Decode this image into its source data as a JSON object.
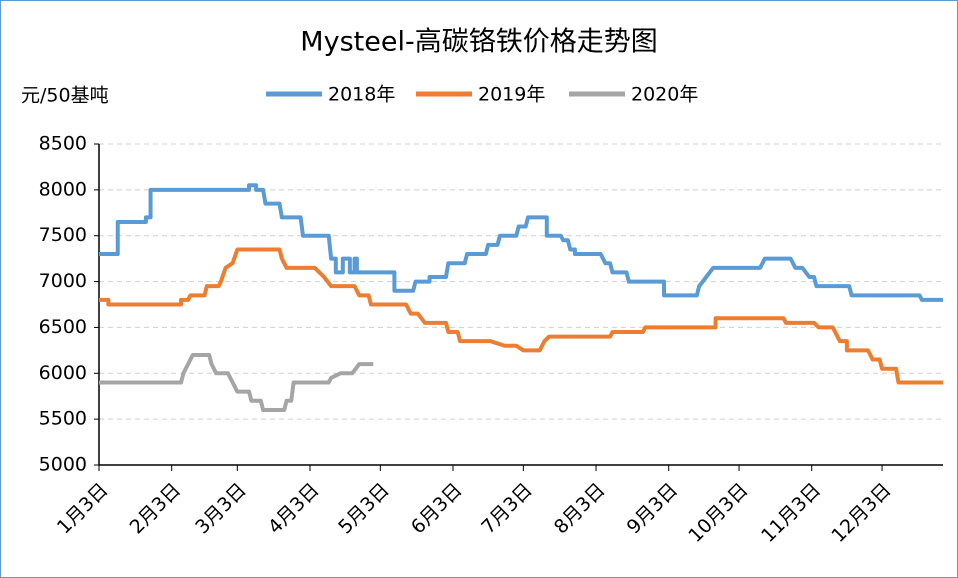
{
  "chart_data": {
    "type": "line",
    "title": "Mysteel-高碳铬铁价格走势图",
    "y_label": "元/50基吨",
    "xlim": [
      0,
      360
    ],
    "ylim": [
      5000,
      8500
    ],
    "yticks": [
      5000,
      5500,
      6000,
      6500,
      7000,
      7500,
      8000,
      8500
    ],
    "grid": true,
    "xticks": [
      {
        "value": 0,
        "label": "1月3日"
      },
      {
        "value": 31,
        "label": "2月3日"
      },
      {
        "value": 59,
        "label": "3月3日"
      },
      {
        "value": 90,
        "label": "4月3日"
      },
      {
        "value": 120,
        "label": "5月3日"
      },
      {
        "value": 151,
        "label": "6月3日"
      },
      {
        "value": 181,
        "label": "7月3日"
      },
      {
        "value": 212,
        "label": "8月3日"
      },
      {
        "value": 243,
        "label": "9月3日"
      },
      {
        "value": 273,
        "label": "10月3日"
      },
      {
        "value": 304,
        "label": "11月3日"
      },
      {
        "value": 334,
        "label": "12月3日"
      }
    ],
    "legend": "top",
    "series": [
      {
        "name": "2018年",
        "color": "#5b9bd5",
        "x": [
          0,
          8,
          8,
          20,
          20,
          22,
          22,
          64,
          64,
          67,
          67,
          70,
          71,
          77,
          78,
          86,
          87,
          98,
          99,
          101,
          101,
          104,
          104,
          107,
          107,
          109,
          109,
          110,
          110,
          126,
          126,
          134,
          135,
          141,
          141,
          148,
          149,
          156,
          157,
          165,
          166,
          170,
          171,
          178,
          179,
          182,
          183,
          191,
          191,
          197,
          198,
          200,
          201,
          203,
          203,
          214,
          216,
          218,
          219,
          225,
          226,
          241,
          241,
          255,
          256,
          259,
          262,
          282,
          284,
          295,
          297,
          300,
          303,
          305,
          306,
          320,
          321,
          350,
          351,
          360
        ],
        "values": [
          7300,
          7300,
          7650,
          7650,
          7700,
          7700,
          8000,
          8000,
          8050,
          8050,
          8000,
          8000,
          7850,
          7850,
          7700,
          7700,
          7500,
          7500,
          7250,
          7250,
          7100,
          7100,
          7250,
          7250,
          7100,
          7100,
          7250,
          7250,
          7100,
          7100,
          6900,
          6900,
          7000,
          7000,
          7050,
          7050,
          7200,
          7200,
          7300,
          7300,
          7400,
          7400,
          7500,
          7500,
          7600,
          7600,
          7700,
          7700,
          7500,
          7500,
          7450,
          7450,
          7350,
          7350,
          7300,
          7300,
          7200,
          7200,
          7100,
          7100,
          7000,
          7000,
          6850,
          6850,
          6950,
          7050,
          7150,
          7150,
          7250,
          7250,
          7150,
          7150,
          7050,
          7050,
          6950,
          6950,
          6850,
          6850,
          6800,
          6800
        ]
      },
      {
        "name": "2019年",
        "color": "#ed7d31",
        "x": [
          0,
          4,
          4,
          35,
          35,
          38,
          39,
          45,
          46,
          51,
          52,
          54,
          57,
          59,
          77,
          78,
          80,
          92,
          94,
          96,
          99,
          109,
          111,
          115,
          116,
          131,
          133,
          136,
          139,
          148,
          149,
          153,
          154,
          167,
          173,
          178,
          181,
          188,
          190,
          192,
          218,
          219,
          232,
          233,
          263,
          263,
          292,
          293,
          305,
          307,
          313,
          316,
          319,
          319,
          328,
          330,
          333,
          334,
          340,
          341,
          360
        ],
        "values": [
          6800,
          6800,
          6750,
          6750,
          6800,
          6800,
          6850,
          6850,
          6950,
          6950,
          7000,
          7150,
          7200,
          7350,
          7350,
          7250,
          7150,
          7150,
          7100,
          7050,
          6950,
          6950,
          6850,
          6850,
          6750,
          6750,
          6650,
          6650,
          6550,
          6550,
          6450,
          6450,
          6350,
          6350,
          6300,
          6300,
          6250,
          6250,
          6350,
          6400,
          6400,
          6450,
          6450,
          6500,
          6500,
          6600,
          6600,
          6550,
          6550,
          6500,
          6500,
          6350,
          6350,
          6250,
          6250,
          6150,
          6150,
          6050,
          6050,
          5900,
          5900
        ]
      },
      {
        "name": "2020年",
        "color": "#a5a5a5",
        "x": [
          0,
          35,
          36,
          38,
          40,
          47,
          48,
          50,
          55,
          56,
          59,
          64,
          65,
          69,
          70,
          79,
          80,
          82,
          83,
          98,
          99,
          103,
          108,
          111,
          117
        ],
        "values": [
          5900,
          5900,
          6000,
          6100,
          6200,
          6200,
          6100,
          6000,
          6000,
          5950,
          5800,
          5800,
          5700,
          5700,
          5600,
          5600,
          5700,
          5700,
          5900,
          5900,
          5950,
          6000,
          6000,
          6100,
          6100
        ]
      }
    ]
  }
}
